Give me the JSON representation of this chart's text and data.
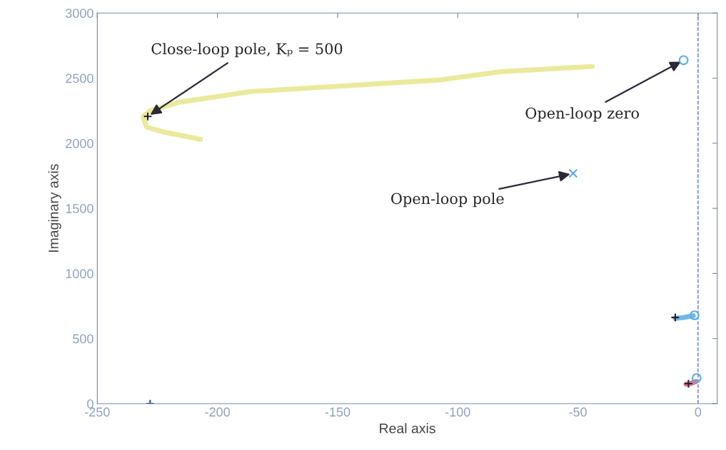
{
  "chart_data": {
    "type": "scatter",
    "xlabel": "Real axis",
    "ylabel": "Imaginary axis",
    "xlim": [
      -250,
      8
    ],
    "ylim": [
      0,
      3000
    ],
    "xticks": [
      -250,
      -200,
      -150,
      -100,
      -50,
      0
    ],
    "yticks": [
      0,
      500,
      1000,
      1500,
      2000,
      2500,
      3000
    ],
    "grid": false,
    "series": [
      {
        "type": "line",
        "color": "#e6e68c",
        "x": [
          -44,
          -82,
          -108,
          -186,
          -216,
          -228,
          -231,
          -229.5,
          -222,
          -207
        ],
        "values": [
          2590,
          2550,
          2485,
          2397,
          2315,
          2250,
          2206,
          2124,
          2085,
          2030
        ],
        "line_style": "solid",
        "marker": "none"
      },
      {
        "type": "line",
        "color": "#5aaae6",
        "x": [
          -9.5,
          -6,
          -2
        ],
        "values": [
          655,
          662,
          675
        ],
        "line_style": "solid",
        "marker": "none"
      },
      {
        "type": "line",
        "color": "#d06080",
        "x": [
          -5,
          -3,
          -1
        ],
        "values": [
          150,
          155,
          170
        ],
        "line_style": "solid",
        "marker": "none"
      },
      {
        "color": "#222233",
        "x": [
          -229,
          -9.5,
          -4
        ],
        "values": [
          2206,
          662,
          153
        ],
        "marker": "cross"
      },
      {
        "color": "#1f4f9f",
        "x": [
          -228
        ],
        "values": [
          0
        ],
        "marker": "cross"
      },
      {
        "color": "#5aaae6",
        "x": [
          -52
        ],
        "values": [
          1768
        ],
        "marker": "x"
      },
      {
        "color": "#5aaae6",
        "x": [
          -6,
          -1.5,
          -0.6
        ],
        "values": [
          2638,
          679,
          197
        ],
        "marker": "circle"
      }
    ],
    "ref_lines": [
      {
        "axis": "x",
        "value": 0,
        "color": "#5a7ab0",
        "line_style": "dashed"
      }
    ],
    "annotations": [
      {
        "text": "Close-loop pole, Kₚ = 500",
        "x": -229,
        "y": 2206
      },
      {
        "text": "Open-loop zero",
        "x": -6,
        "y": 2638
      },
      {
        "text": "Open-loop pole",
        "x": -52,
        "y": 1768
      }
    ]
  }
}
